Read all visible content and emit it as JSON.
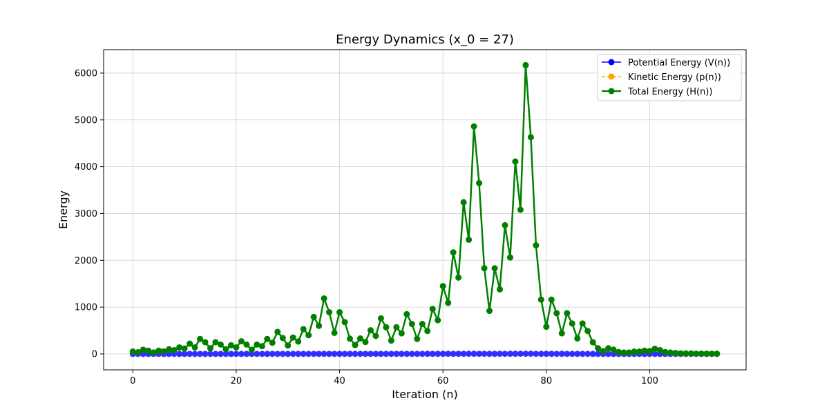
{
  "chart_data": {
    "type": "line",
    "title": "Energy Dynamics (x_0 = 27)",
    "xlabel": "Iteration (n)",
    "ylabel": "Energy",
    "xlim": [
      -5.65,
      118.65
    ],
    "ylim": [
      -340,
      6500
    ],
    "xticks": [
      0,
      20,
      40,
      60,
      80,
      100
    ],
    "yticks": [
      0,
      1000,
      2000,
      3000,
      4000,
      5000,
      6000
    ],
    "grid": true,
    "legend_position": "top-right",
    "x": [
      0,
      1,
      2,
      3,
      4,
      5,
      6,
      7,
      8,
      9,
      10,
      11,
      12,
      13,
      14,
      15,
      16,
      17,
      18,
      19,
      20,
      21,
      22,
      23,
      24,
      25,
      26,
      27,
      28,
      29,
      30,
      31,
      32,
      33,
      34,
      35,
      36,
      37,
      38,
      39,
      40,
      41,
      42,
      43,
      44,
      45,
      46,
      47,
      48,
      49,
      50,
      51,
      52,
      53,
      54,
      55,
      56,
      57,
      58,
      59,
      60,
      61,
      62,
      63,
      64,
      65,
      66,
      67,
      68,
      69,
      70,
      71,
      72,
      73,
      74,
      75,
      76,
      77,
      78,
      79,
      80,
      81,
      82,
      83,
      84,
      85,
      86,
      87,
      88,
      89,
      90,
      91,
      92,
      93,
      94,
      95,
      96,
      97,
      98,
      99,
      100,
      101,
      102,
      103,
      104,
      105,
      106,
      107,
      108,
      109,
      110,
      111,
      112,
      113
    ],
    "series": [
      {
        "name": "Potential Energy (V(n))",
        "color": "#0000ff",
        "style": "solid",
        "values": [
          0.5,
          0.3,
          0.6,
          0.5,
          0.4,
          0.5,
          0.7,
          0.4,
          0.8,
          0.4,
          0.7,
          0.8,
          0.6,
          0.8,
          0.6,
          0.8,
          0.7,
          0.4,
          0.7,
          0.6,
          0.9,
          0.7,
          0.5,
          0.8,
          0.6,
          0.9,
          0.6,
          1.2,
          0.8,
          0.9,
          0.7,
          1.3,
          0.9,
          1.2,
          1.0,
          1.6,
          1.2,
          2.2,
          1.7,
          1.2,
          1.6,
          1.4,
          0.9,
          0.8,
          1.0,
          1.4,
          1.1,
          1.7,
          1.3,
          0.9,
          1.3,
          1.2,
          1.7,
          1.4,
          1.0,
          1.5,
          1.2,
          1.8,
          1.5,
          2.2,
          1.9,
          3.0,
          2.3,
          3.3,
          2.9,
          4.4,
          4.0,
          3.1,
          2.7,
          3.1,
          2.2,
          3.1,
          3.6,
          4.2,
          3.7,
          4.5,
          4.7,
          4.6,
          2.8,
          2.0,
          2.6,
          1.9,
          1.6,
          2.0,
          1.7,
          1.2,
          1.7,
          1.4,
          1.0,
          0.7,
          0.6,
          0.7,
          0.6,
          0.5,
          0.4,
          0.6,
          0.5,
          0.6,
          0.4,
          0.5,
          0.4,
          0.3,
          0.4,
          0.2,
          0.3,
          0.2,
          0.2,
          0.2,
          0.1,
          0.1,
          0.1,
          0.1,
          0.0,
          0.0
        ]
      },
      {
        "name": "Kinetic Energy (p(n))",
        "color": "#ffa500",
        "style": "dashed",
        "values": [
          52,
          35,
          90,
          70,
          30,
          70,
          55,
          100,
          80,
          140,
          115,
          220,
          140,
          320,
          250,
          120,
          250,
          200,
          100,
          185,
          140,
          270,
          200,
          90,
          200,
          165,
          320,
          240,
          470,
          340,
          180,
          350,
          265,
          530,
          400,
          790,
          600,
          1185,
          890,
          450,
          890,
          680,
          325,
          190,
          330,
          255,
          505,
          385,
          760,
          570,
          285,
          570,
          440,
          850,
          640,
          320,
          640,
          490,
          960,
          720,
          1450,
          1090,
          2170,
          1630,
          3240,
          2440,
          4860,
          3650,
          1830,
          920,
          1830,
          1380,
          2750,
          2060,
          4110,
          3080,
          6170,
          4630,
          2320,
          1160,
          580,
          1160,
          870,
          440,
          870,
          650,
          330,
          650,
          490,
          250,
          120,
          60,
          120,
          90,
          40,
          30,
          30,
          50,
          50,
          70,
          60,
          110,
          80,
          40,
          30,
          20,
          10,
          10,
          10,
          5,
          5,
          5,
          5,
          5
        ]
      },
      {
        "name": "Total Energy (H(n))",
        "color": "#008000",
        "style": "solid",
        "values": [
          52,
          35,
          90,
          70,
          30,
          70,
          55,
          100,
          80,
          140,
          115,
          220,
          140,
          320,
          250,
          120,
          250,
          200,
          100,
          185,
          140,
          270,
          200,
          90,
          200,
          165,
          320,
          240,
          470,
          340,
          180,
          350,
          265,
          530,
          400,
          790,
          600,
          1185,
          890,
          450,
          890,
          680,
          325,
          190,
          330,
          255,
          505,
          385,
          760,
          570,
          285,
          570,
          440,
          850,
          640,
          320,
          640,
          490,
          960,
          720,
          1450,
          1090,
          2170,
          1630,
          3240,
          2440,
          4860,
          3650,
          1830,
          920,
          1830,
          1380,
          2750,
          2060,
          4110,
          3080,
          6170,
          4630,
          2320,
          1160,
          580,
          1160,
          870,
          440,
          870,
          650,
          330,
          650,
          490,
          250,
          120,
          60,
          120,
          90,
          40,
          30,
          30,
          50,
          50,
          70,
          60,
          110,
          80,
          40,
          30,
          20,
          10,
          10,
          10,
          5,
          5,
          5,
          5,
          5
        ]
      }
    ]
  }
}
